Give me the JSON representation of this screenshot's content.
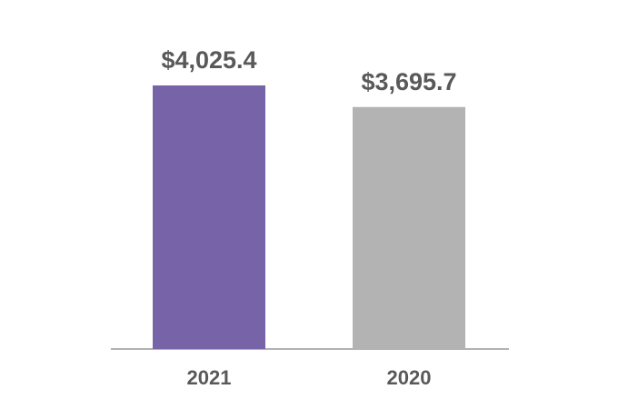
{
  "chart_data": {
    "type": "bar",
    "categories": [
      "2021",
      "2020"
    ],
    "values": [
      4025.4,
      3695.7
    ],
    "value_labels": [
      "$4,025.4",
      "$3,695.7"
    ],
    "colors": [
      "#7764a8",
      "#b3b3b3"
    ]
  }
}
